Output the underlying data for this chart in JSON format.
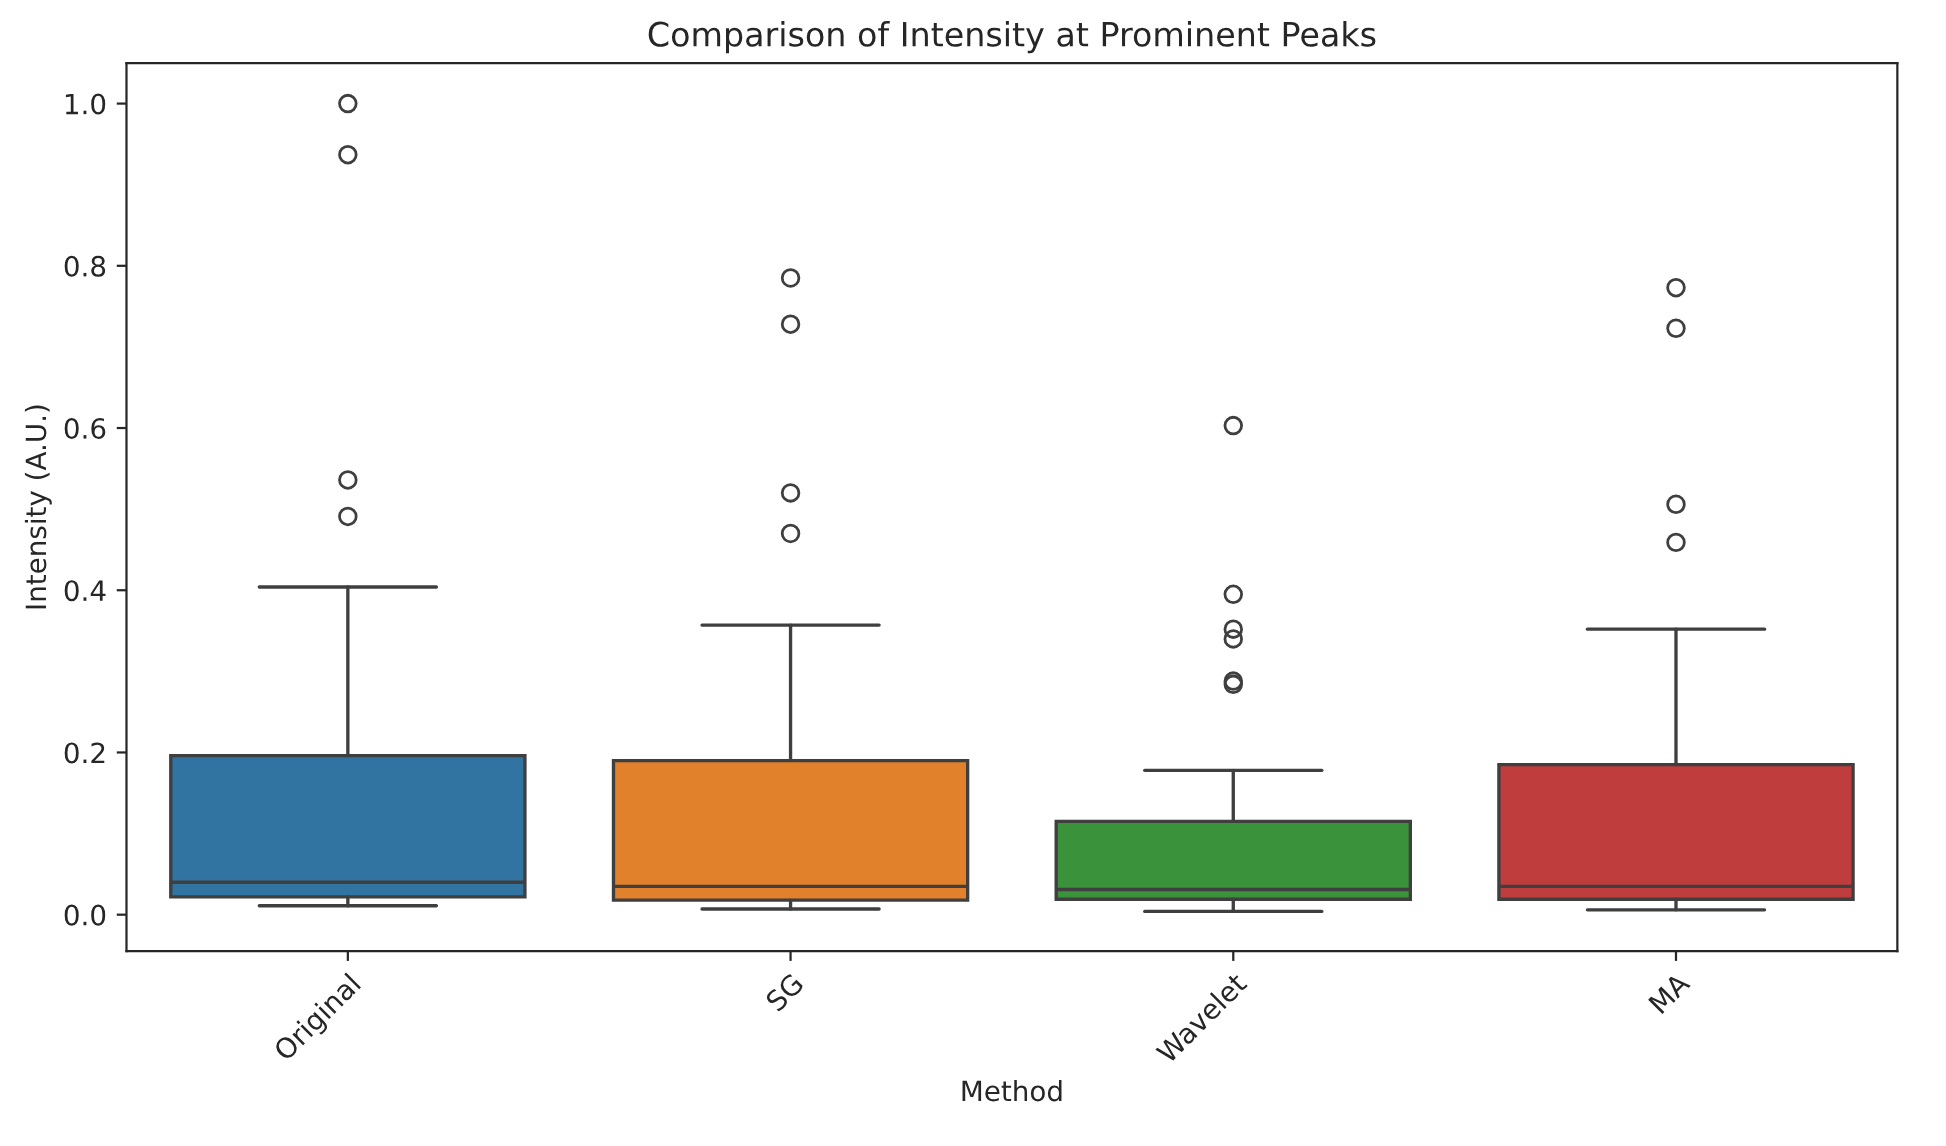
{
  "chart_data": {
    "type": "box",
    "title": "Comparison of Intensity at Prominent Peaks",
    "xlabel": "Method",
    "ylabel": "Intensity (A.U.)",
    "categories": [
      "Original",
      "SG",
      "Wavelet",
      "MA"
    ],
    "colors": [
      "#3274a1",
      "#e1812c",
      "#3a923a",
      "#c03d3e"
    ],
    "boxes": [
      {
        "low": 0.011,
        "q1": 0.022,
        "median": 0.04,
        "q3": 0.196,
        "high": 0.404,
        "outliers": [
          1.0,
          0.937,
          0.536,
          0.491
        ]
      },
      {
        "low": 0.007,
        "q1": 0.018,
        "median": 0.035,
        "q3": 0.19,
        "high": 0.357,
        "outliers": [
          0.785,
          0.728,
          0.52,
          0.47
        ]
      },
      {
        "low": 0.004,
        "q1": 0.019,
        "median": 0.031,
        "q3": 0.115,
        "high": 0.178,
        "outliers": [
          0.603,
          0.395,
          0.352,
          0.34,
          0.288,
          0.284
        ]
      },
      {
        "low": 0.006,
        "q1": 0.019,
        "median": 0.035,
        "q3": 0.185,
        "high": 0.352,
        "outliers": [
          0.773,
          0.723,
          0.506,
          0.459
        ]
      }
    ],
    "ylim": [
      -0.045,
      1.05
    ],
    "yticks": [
      {
        "value": 0,
        "label": "0.0"
      },
      {
        "value": 0.2,
        "label": "0.2"
      },
      {
        "value": 0.4,
        "label": "0.4"
      },
      {
        "value": 0.6,
        "label": "0.6"
      },
      {
        "value": 0.8,
        "label": "0.8"
      },
      {
        "value": 1.0,
        "label": "1.0"
      }
    ],
    "grid": false,
    "legend": false
  }
}
